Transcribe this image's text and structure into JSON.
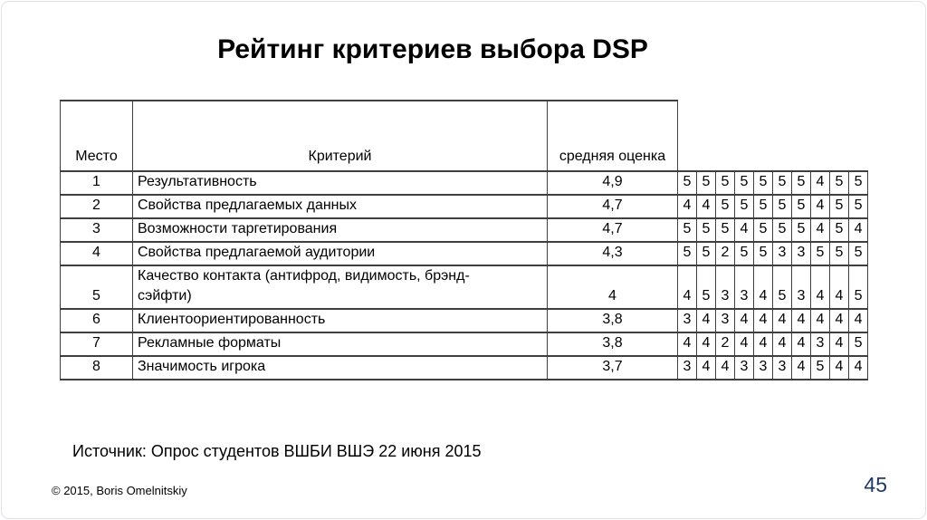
{
  "slide": {
    "title": "Рейтинг критериев выбора DSP",
    "source": "Источник: Опрос студентов ВШБИ ВШЭ 22 июня 2015",
    "copyright": "© 2015, Boris Omelnitskiy",
    "page_number": "45"
  },
  "table": {
    "headers": {
      "place": "Место",
      "criterion": "Критерий",
      "avg": "средняя оценка"
    },
    "rows": [
      {
        "place": "1",
        "criterion": "Результативность",
        "avg": "4,9",
        "scores": [
          5,
          5,
          5,
          5,
          5,
          5,
          5,
          4,
          5,
          5
        ]
      },
      {
        "place": "2",
        "criterion": "Свойства предлагаемых данных",
        "avg": "4,7",
        "scores": [
          4,
          4,
          5,
          5,
          5,
          5,
          5,
          4,
          5,
          5
        ]
      },
      {
        "place": "3",
        "criterion": "Возможности таргетирования",
        "avg": "4,7",
        "scores": [
          5,
          5,
          5,
          4,
          5,
          5,
          5,
          4,
          5,
          4
        ]
      },
      {
        "place": "4",
        "criterion": "Свойства предлагаемой аудитории",
        "avg": "4,3",
        "scores": [
          5,
          5,
          2,
          5,
          5,
          3,
          3,
          5,
          5,
          5
        ]
      },
      {
        "place": "5",
        "criterion": "Качество контакта (антифрод, видимость, брэнд-\nсэйфти)",
        "avg": "4",
        "scores": [
          4,
          5,
          3,
          3,
          4,
          5,
          3,
          4,
          4,
          5
        ]
      },
      {
        "place": "6",
        "criterion": "Клиентоориентированность",
        "avg": "3,8",
        "scores": [
          3,
          4,
          3,
          4,
          4,
          4,
          4,
          4,
          4,
          4
        ]
      },
      {
        "place": "7",
        "criterion": "Рекламные форматы",
        "avg": "3,8",
        "scores": [
          4,
          4,
          2,
          4,
          4,
          4,
          4,
          3,
          4,
          5
        ]
      },
      {
        "place": "8",
        "criterion": "Значимость игрока",
        "avg": "3,7",
        "scores": [
          3,
          4,
          4,
          3,
          3,
          3,
          4,
          5,
          4,
          4
        ]
      }
    ]
  },
  "colors": {
    "background": "#ffffff",
    "slide_frame": "#dfe2e6",
    "table_border": "#3f3f3f",
    "page_number": "#1f3864"
  }
}
